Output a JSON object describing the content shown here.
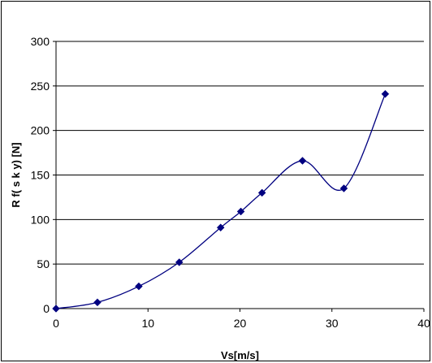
{
  "chart_data": {
    "type": "scatter",
    "title": "",
    "xlabel": "Vs[m/s]",
    "ylabel": "R f( s k y) [N]",
    "xlim": [
      0,
      40
    ],
    "ylim": [
      0,
      300
    ],
    "x_ticks": [
      0,
      10,
      20,
      30,
      40
    ],
    "y_ticks": [
      0,
      50,
      100,
      150,
      200,
      250,
      300
    ],
    "grid": "horizontal",
    "legend": "none",
    "smooth_line": true,
    "colors": {
      "series": "#000080",
      "grid": "#000000",
      "axis": "#000000"
    },
    "series": [
      {
        "x": [
          0,
          4.5,
          9,
          13.4,
          17.9,
          20.1,
          22.4,
          26.8,
          31.3,
          35.8
        ],
        "y": [
          0,
          7,
          25,
          52,
          91,
          109,
          130,
          166,
          135,
          241
        ]
      }
    ]
  }
}
